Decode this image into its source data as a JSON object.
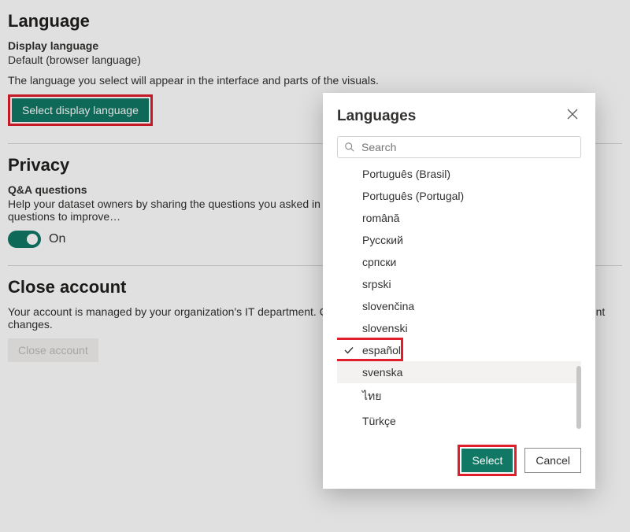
{
  "language_section": {
    "heading": "Language",
    "display_label": "Display language",
    "display_value": "Default (browser language)",
    "description": "The language you select will appear in the interface and parts of the visuals.",
    "select_button": "Select display language"
  },
  "privacy_section": {
    "heading": "Privacy",
    "qa_label": "Q&A questions",
    "qa_desc": "Help your dataset owners by sharing the questions you asked in Q&A. Your dataset owners will use your anonymized questions to improve…",
    "toggle_state": "On"
  },
  "close_section": {
    "heading": "Close account",
    "desc": "Your account is managed by your organization's IT department. Contact them to close your account or make other account changes.",
    "button": "Close account"
  },
  "modal": {
    "title": "Languages",
    "search_placeholder": "Search",
    "select_button": "Select",
    "cancel_button": "Cancel",
    "selected_index": 8,
    "hover_index": 9,
    "items": [
      "Português (Brasil)",
      "Português (Portugal)",
      "română",
      "Русский",
      "српски",
      "srpski",
      "slovenčina",
      "slovenski",
      "español",
      "svenska",
      "ไทย",
      "Türkçe"
    ]
  },
  "colors": {
    "accent": "#117865",
    "highlight": "#e01e2b"
  }
}
